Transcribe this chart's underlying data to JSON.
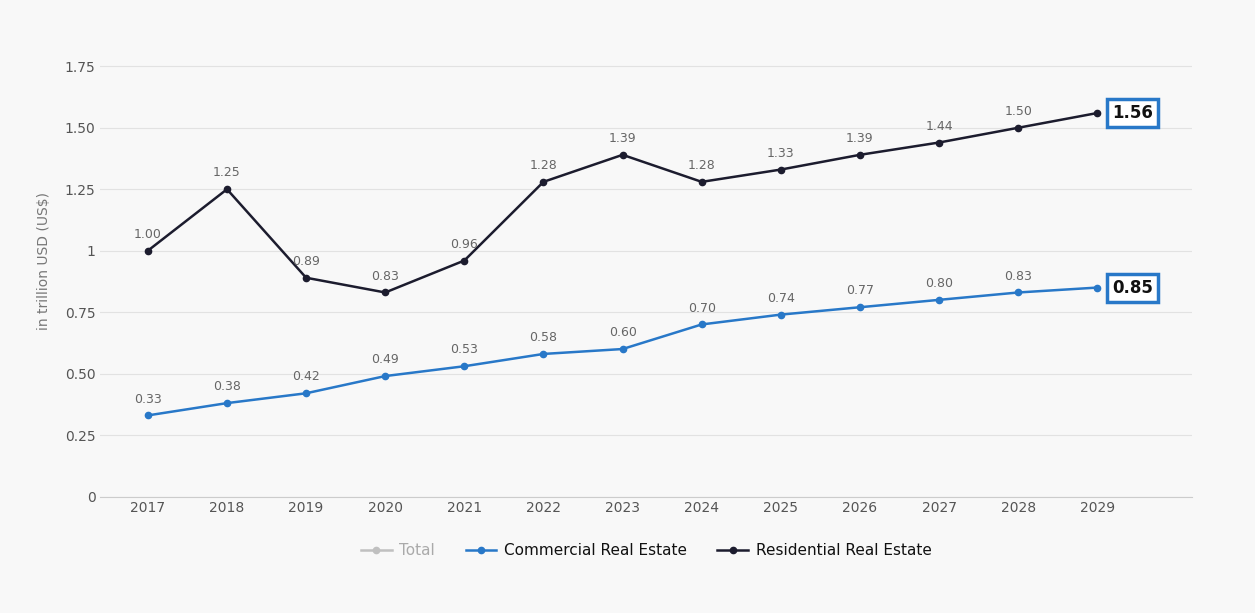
{
  "years": [
    2017,
    2018,
    2019,
    2020,
    2021,
    2022,
    2023,
    2024,
    2025,
    2026,
    2027,
    2028,
    2029
  ],
  "commercial": [
    0.33,
    0.38,
    0.42,
    0.49,
    0.53,
    0.58,
    0.6,
    0.7,
    0.74,
    0.77,
    0.8,
    0.83,
    0.85
  ],
  "residential": [
    1.0,
    1.25,
    0.89,
    0.83,
    0.96,
    1.28,
    1.39,
    1.28,
    1.33,
    1.39,
    1.44,
    1.5,
    1.56
  ],
  "commercial_color": "#2878C8",
  "residential_color": "#1c1c2e",
  "total_color": "#c0c0c0",
  "background_color": "#f8f8f8",
  "grid_color": "#e2e2e2",
  "ylabel": "in trillion USD (US$)",
  "ylim": [
    0,
    1.92
  ],
  "yticks": [
    0,
    0.25,
    0.5,
    0.75,
    1.0,
    1.25,
    1.5,
    1.75
  ],
  "annotation_color": "#666666",
  "box_color_last": "#2878C8",
  "legend_labels": [
    "Total",
    "Commercial Real Estate",
    "Residential Real Estate"
  ],
  "figsize": [
    12.55,
    6.13
  ],
  "dpi": 100
}
